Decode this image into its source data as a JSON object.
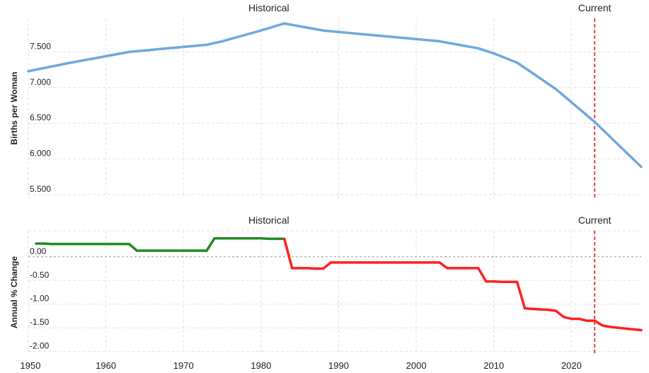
{
  "chart_data": [
    {
      "type": "line",
      "ylabel": "Births per Woman",
      "xlim": [
        1950,
        2029
      ],
      "ylim": [
        5.45,
        7.97
      ],
      "yticks": [
        "5.500",
        "6.000",
        "6.500",
        "7.000",
        "7.500"
      ],
      "ytick_values": [
        5.5,
        6.0,
        6.5,
        7.0,
        7.5
      ],
      "xticks": [
        "1950",
        "1960",
        "1970",
        "1980",
        "1990",
        "2000",
        "2010",
        "2020"
      ],
      "xtick_values": [
        1950,
        1960,
        1970,
        1980,
        1990,
        2000,
        2010,
        2020
      ],
      "annotations": [
        {
          "text": "Historical",
          "x": 1981
        },
        {
          "text": "Current",
          "x": 2023
        }
      ],
      "current_year": 2023,
      "grid": true,
      "series": [
        {
          "color": "#6fa8dc",
          "x": [
            1950,
            1955,
            1960,
            1963,
            1968,
            1973,
            1975,
            1980,
            1983,
            1988,
            1993,
            1998,
            2003,
            2008,
            2010,
            2013,
            2018,
            2023,
            2029
          ],
          "y": [
            7.23,
            7.34,
            7.44,
            7.5,
            7.55,
            7.6,
            7.65,
            7.8,
            7.9,
            7.8,
            7.75,
            7.7,
            7.65,
            7.55,
            7.48,
            7.35,
            6.98,
            6.52,
            5.89
          ]
        }
      ]
    },
    {
      "type": "line",
      "ylabel": "Annual % Change",
      "xlim": [
        1950,
        2029
      ],
      "ylim": [
        -2.05,
        0.55
      ],
      "yticks": [
        "-2.00",
        "-1.50",
        "-1.00",
        "-0.50",
        "0.00"
      ],
      "ytick_values": [
        -2.0,
        -1.5,
        -1.0,
        -0.5,
        0.0
      ],
      "annotations": [
        {
          "text": "Historical",
          "x": 1981
        },
        {
          "text": "Current",
          "x": 2023
        }
      ],
      "current_year": 2023,
      "grid": true,
      "positive_color": "#228b22",
      "negative_color": "#ff2020",
      "series": [
        {
          "x": [
            1951,
            1952,
            1953,
            1963,
            1964,
            1973,
            1974,
            1980,
            1981,
            1983,
            1984,
            1986,
            1987,
            1988,
            1989,
            1995,
            2003,
            2004,
            2008,
            2009,
            2010,
            2011,
            2013,
            2014,
            2016,
            2017,
            2018,
            2019,
            2020,
            2021,
            2022,
            2023,
            2024,
            2025,
            2029
          ],
          "y": [
            0.28,
            0.28,
            0.27,
            0.27,
            0.13,
            0.13,
            0.39,
            0.39,
            0.38,
            0.38,
            -0.24,
            -0.24,
            -0.25,
            -0.25,
            -0.12,
            -0.12,
            -0.12,
            -0.24,
            -0.24,
            -0.52,
            -0.52,
            -0.53,
            -0.53,
            -1.09,
            -1.11,
            -1.12,
            -1.14,
            -1.27,
            -1.31,
            -1.31,
            -1.35,
            -1.35,
            -1.45,
            -1.48,
            -1.55
          ]
        }
      ]
    }
  ]
}
